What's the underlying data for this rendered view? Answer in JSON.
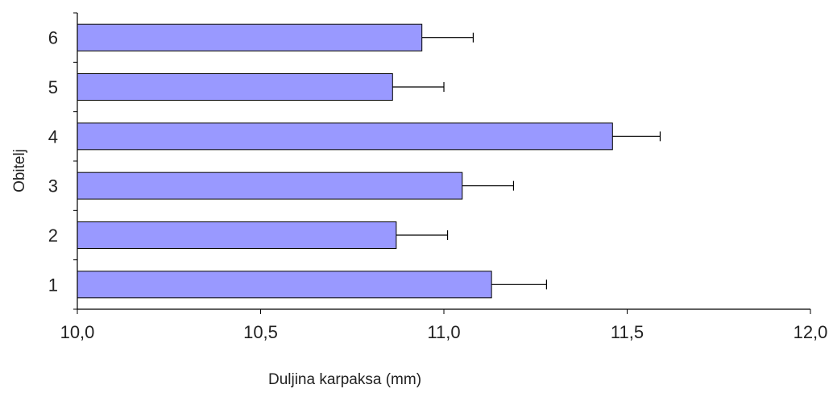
{
  "chart_data": {
    "type": "bar",
    "orientation": "horizontal",
    "categories": [
      "1",
      "2",
      "3",
      "4",
      "5",
      "6"
    ],
    "values": [
      11.13,
      10.87,
      11.05,
      11.46,
      10.86,
      10.94
    ],
    "error": [
      0.15,
      0.14,
      0.14,
      0.13,
      0.14,
      0.14
    ],
    "xlabel": "Duljina karpaksa (mm)",
    "ylabel": "Obitelj",
    "xlim": [
      10.0,
      12.0
    ],
    "xticks": [
      "10,0",
      "10,5",
      "11,0",
      "11,5",
      "12,0"
    ],
    "xtick_values": [
      10.0,
      10.5,
      11.0,
      11.5,
      12.0
    ],
    "grid": false,
    "legend": "none",
    "colors": {
      "bar_fill": "#9999ff",
      "bar_stroke": "#000000",
      "axis": "#000000"
    }
  }
}
